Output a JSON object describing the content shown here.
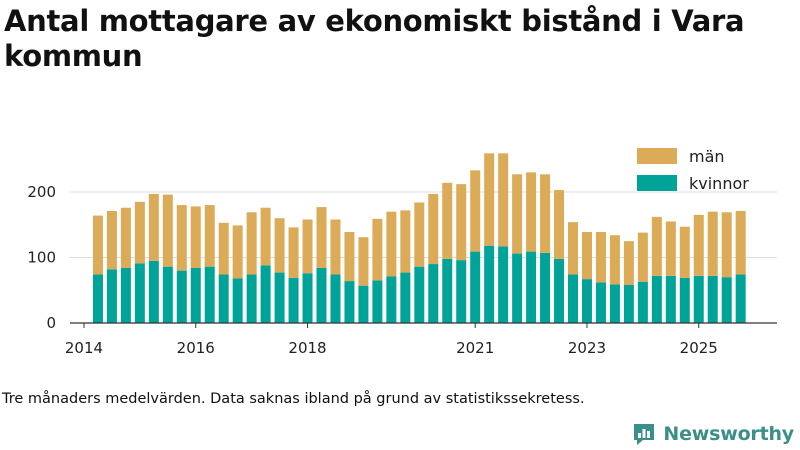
{
  "chart_data": {
    "type": "bar",
    "stacked": true,
    "title": "Antal mottagare av ekonomiskt bistånd i Vara kommun",
    "xlabel": "",
    "ylabel": "",
    "ylim": [
      0,
      290
    ],
    "yticks": [
      0,
      100,
      200
    ],
    "xlim": [
      2013.75,
      2026.4
    ],
    "xticks": [
      2014,
      2016,
      2018,
      2021,
      2023,
      2025
    ],
    "grid": true,
    "legend_position": "top-right",
    "x": [
      2014.25,
      2014.5,
      2014.75,
      2015.0,
      2015.25,
      2015.5,
      2015.75,
      2016.0,
      2016.25,
      2016.5,
      2016.75,
      2017.0,
      2017.25,
      2017.5,
      2017.75,
      2018.0,
      2018.25,
      2018.5,
      2018.75,
      2019.0,
      2019.25,
      2019.5,
      2019.75,
      2020.0,
      2020.25,
      2020.5,
      2020.75,
      2021.0,
      2021.25,
      2021.5,
      2021.75,
      2022.0,
      2022.25,
      2022.5,
      2022.75,
      2023.0,
      2023.25,
      2023.5,
      2023.75,
      2024.0,
      2024.25,
      2024.5,
      2024.75,
      2025.0,
      2025.25,
      2025.5,
      2025.75
    ],
    "series": [
      {
        "name": "kvinnor",
        "color": "#00a398",
        "values": [
          74,
          82,
          84,
          91,
          95,
          86,
          80,
          84,
          86,
          74,
          68,
          74,
          88,
          77,
          69,
          76,
          84,
          74,
          64,
          57,
          65,
          71,
          77,
          86,
          90,
          98,
          96,
          109,
          118,
          117,
          106,
          109,
          107,
          98,
          74,
          67,
          62,
          59,
          58,
          63,
          72,
          72,
          69,
          72,
          72,
          70,
          74
        ]
      },
      {
        "name": "män",
        "color": "#dbab58",
        "values": [
          90,
          89,
          92,
          94,
          102,
          110,
          100,
          94,
          94,
          79,
          81,
          95,
          88,
          83,
          77,
          82,
          93,
          84,
          75,
          74,
          94,
          99,
          95,
          98,
          107,
          116,
          116,
          124,
          141,
          142,
          121,
          121,
          120,
          105,
          80,
          72,
          77,
          75,
          67,
          75,
          90,
          83,
          78,
          93,
          98,
          99,
          97
        ]
      }
    ]
  },
  "legend": {
    "men_label": "män",
    "women_label": "kvinnor"
  },
  "footnote": "Tre månaders medelvärden. Data saknas ibland på grund av statistikssekretess.",
  "brand": {
    "name": "Newsworthy",
    "color": "#3a8f88"
  }
}
